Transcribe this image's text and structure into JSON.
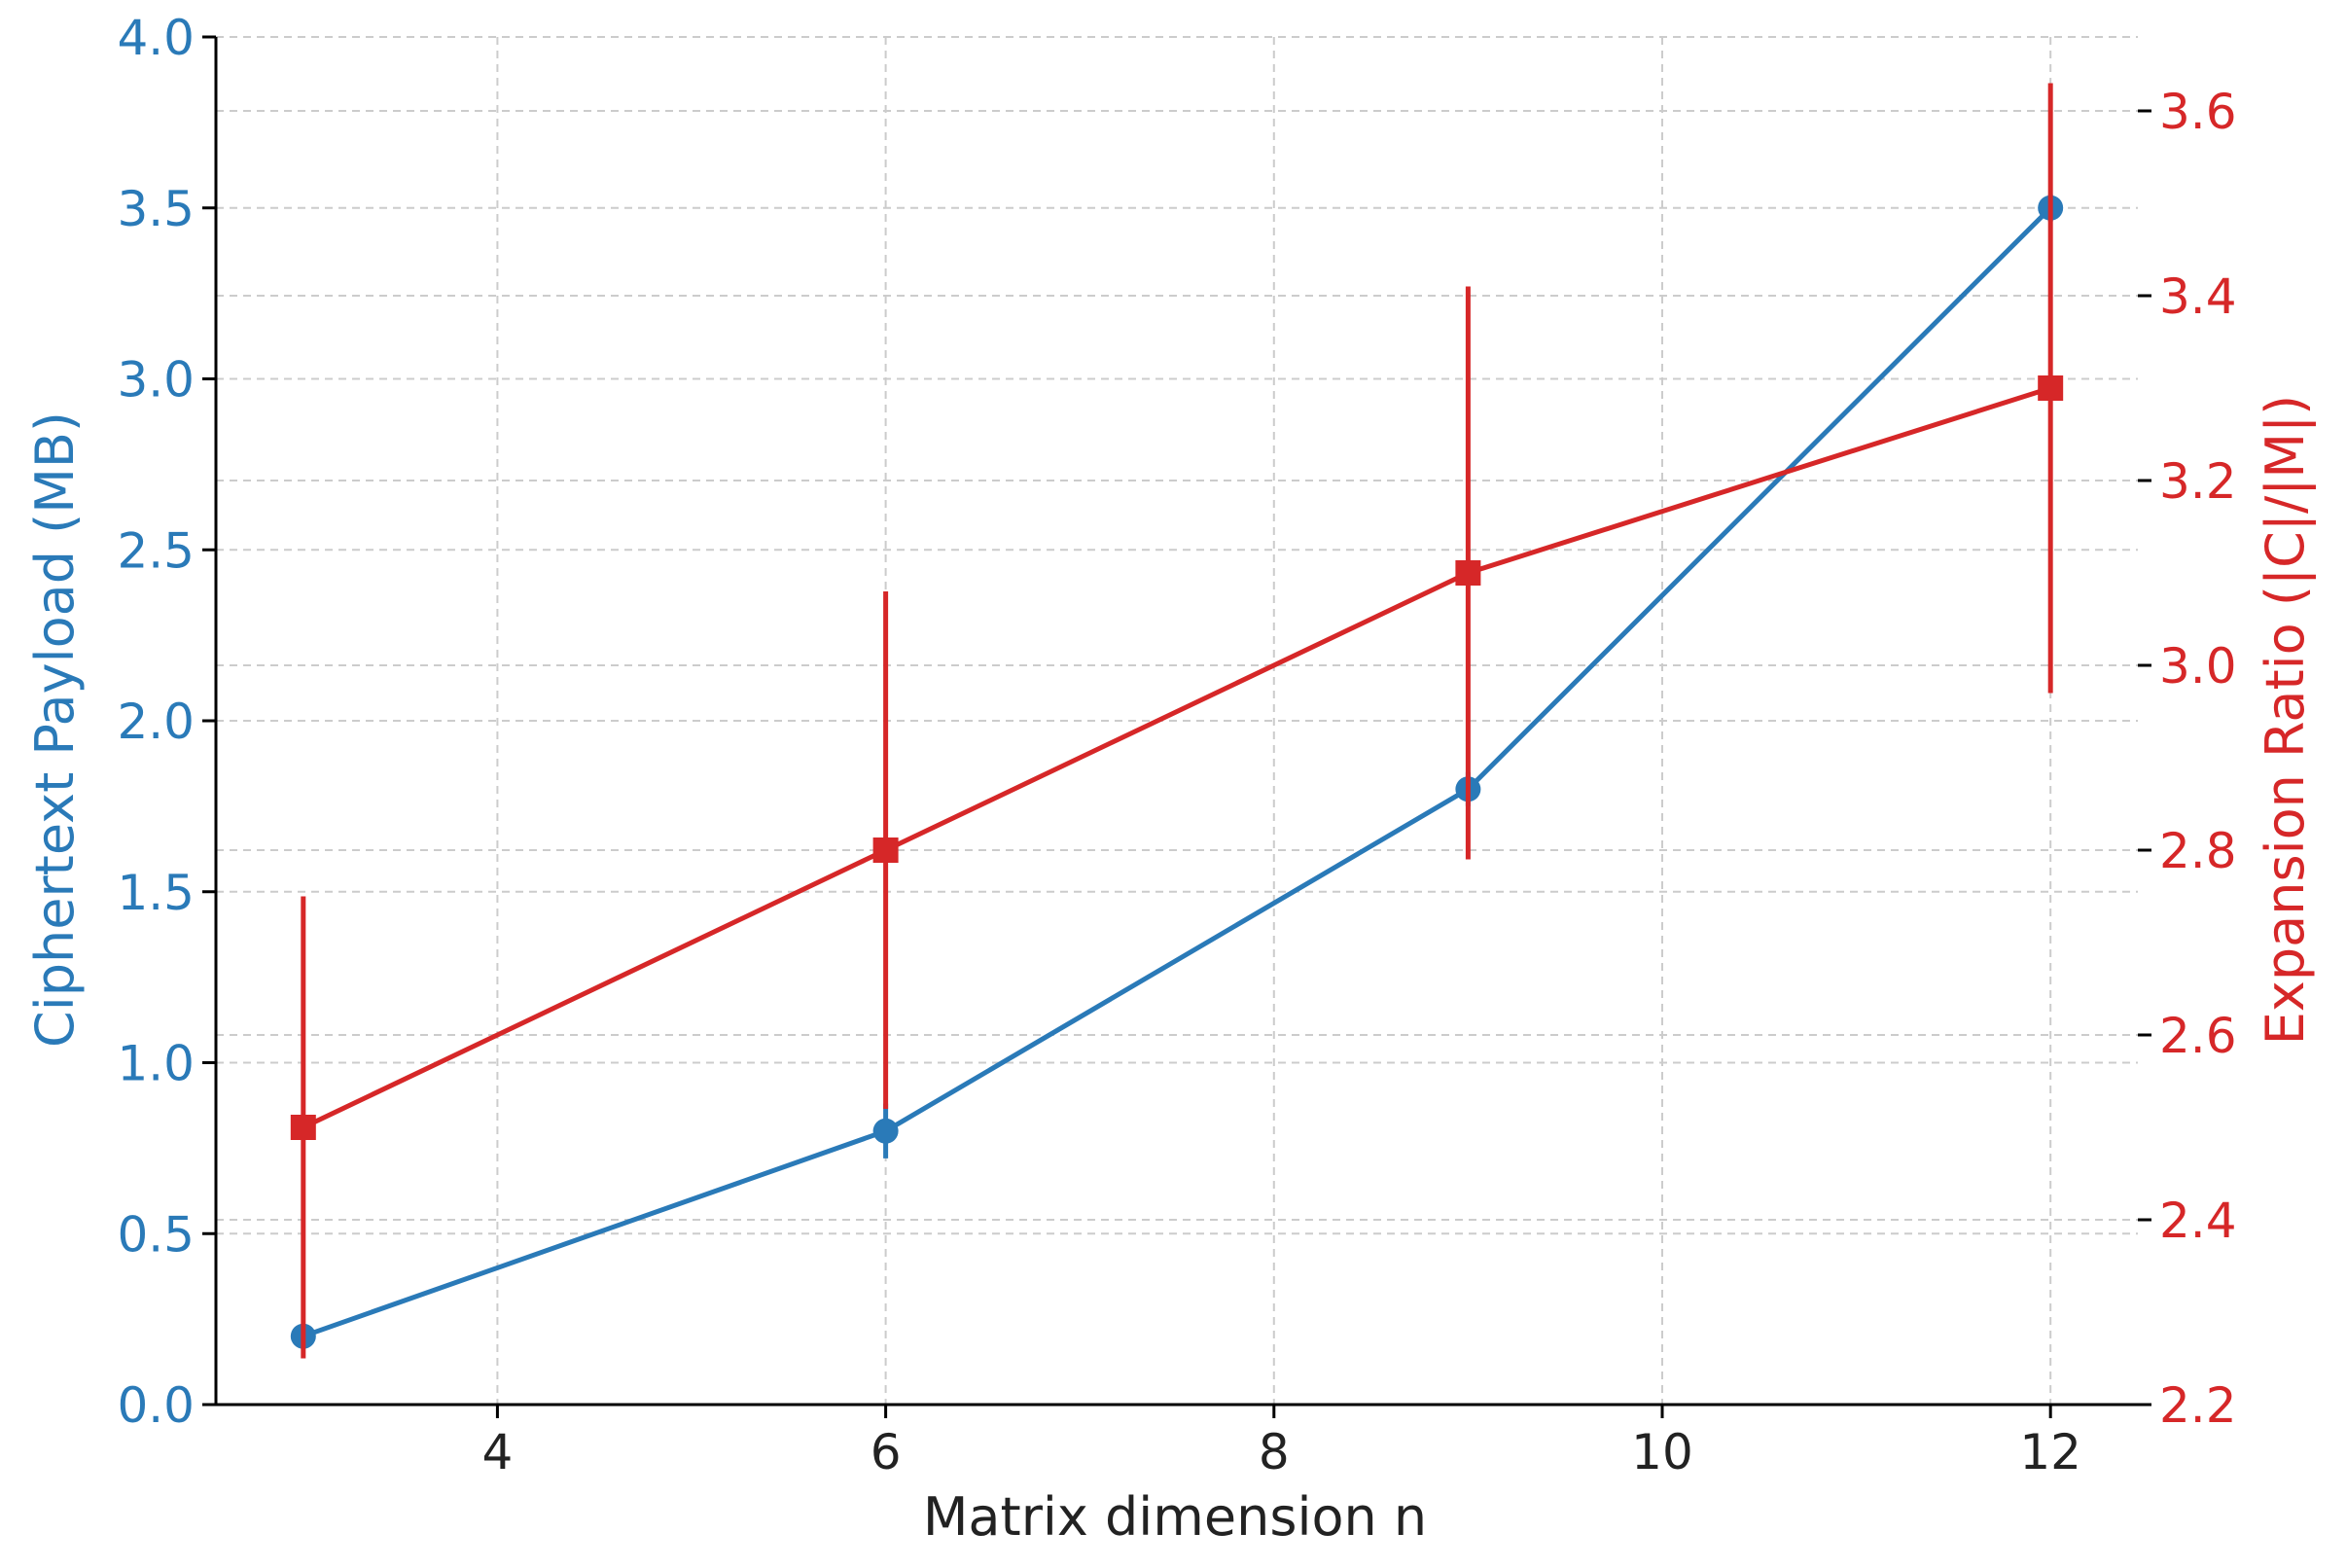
{
  "chart_data": {
    "type": "line",
    "xlabel": "Matrix dimension n",
    "ylabel_left": "Ciphertext Payload (MB)",
    "ylabel_right": "Expansion Ratio (|C|/|M|)",
    "xlim": [
      2.55,
      12.45
    ],
    "ylim_left": [
      0.0,
      4.0
    ],
    "ylim_right": [
      2.2,
      3.68
    ],
    "x_ticks": [
      4,
      6,
      8,
      10,
      12
    ],
    "x_tick_labels": [
      "4",
      "6",
      "8",
      "10",
      "12"
    ],
    "y_left_ticks": [
      0.0,
      0.5,
      1.0,
      1.5,
      2.0,
      2.5,
      3.0,
      3.5,
      4.0
    ],
    "y_left_tick_labels": [
      "0.0",
      "0.5",
      "1.0",
      "1.5",
      "2.0",
      "2.5",
      "3.0",
      "3.5",
      "4.0"
    ],
    "y_right_ticks": [
      2.2,
      2.4,
      2.6,
      2.8,
      3.0,
      3.2,
      3.4,
      3.6
    ],
    "y_right_tick_labels": [
      "2.2",
      "2.4",
      "2.6",
      "2.8",
      "3.0",
      "3.2",
      "3.4",
      "3.6"
    ],
    "grid": true,
    "series": [
      {
        "axis": "left",
        "color": "#2a7ab8",
        "marker": "circle",
        "x": [
          3,
          6,
          9,
          12
        ],
        "y": [
          0.2,
          0.8,
          1.8,
          3.5
        ],
        "yerr": [
          0.03,
          0.08,
          0.05,
          0.04
        ]
      },
      {
        "axis": "right",
        "color": "#d62728",
        "marker": "square",
        "x": [
          3,
          6,
          9,
          12
        ],
        "y": [
          2.5,
          2.8,
          3.1,
          3.3
        ],
        "yerr": [
          0.25,
          0.28,
          0.31,
          0.33
        ]
      }
    ],
    "colors": {
      "left_axis": "#2a7ab8",
      "right_axis": "#d62728",
      "grid": "#cccccc",
      "axis_line": "#000000"
    }
  }
}
